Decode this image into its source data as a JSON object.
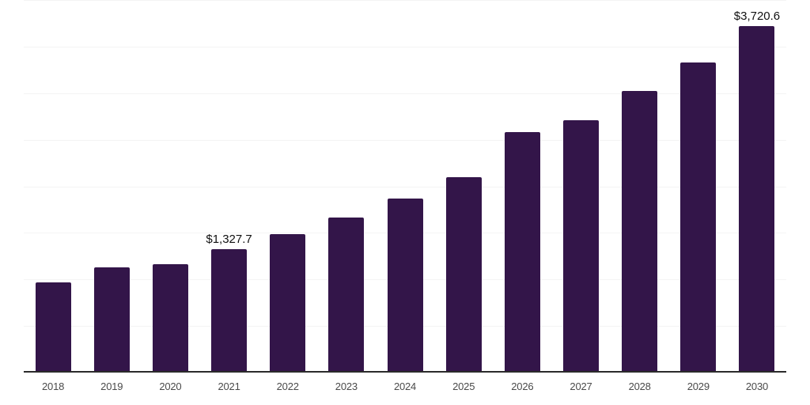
{
  "chart_data": {
    "type": "bar",
    "title": "",
    "xlabel": "",
    "ylabel": "",
    "categories": [
      "2018",
      "2019",
      "2020",
      "2021",
      "2022",
      "2023",
      "2024",
      "2025",
      "2026",
      "2027",
      "2028",
      "2029",
      "2030"
    ],
    "series": [
      {
        "name": "value-usd",
        "values": [
          966,
          1127,
          1161,
          1327.7,
          1490,
          1665,
          1868,
          2095,
          2580,
          2710,
          3023,
          3329,
          3720.6
        ]
      }
    ],
    "data_labels": {
      "2021": "$1,327.7",
      "2030": "$3,720.6"
    },
    "ylim": [
      0,
      4000
    ],
    "gridline_interval": 500,
    "grid": true,
    "legend": false,
    "y_axis_tick_labels_visible": false,
    "colors": {
      "bar": "#331549",
      "background": "#ffffff",
      "gridline": "#f4f4f4",
      "axis_line": "#2b2b2b",
      "tick_label": "#4a4a4a",
      "data_label": "#111111"
    }
  }
}
